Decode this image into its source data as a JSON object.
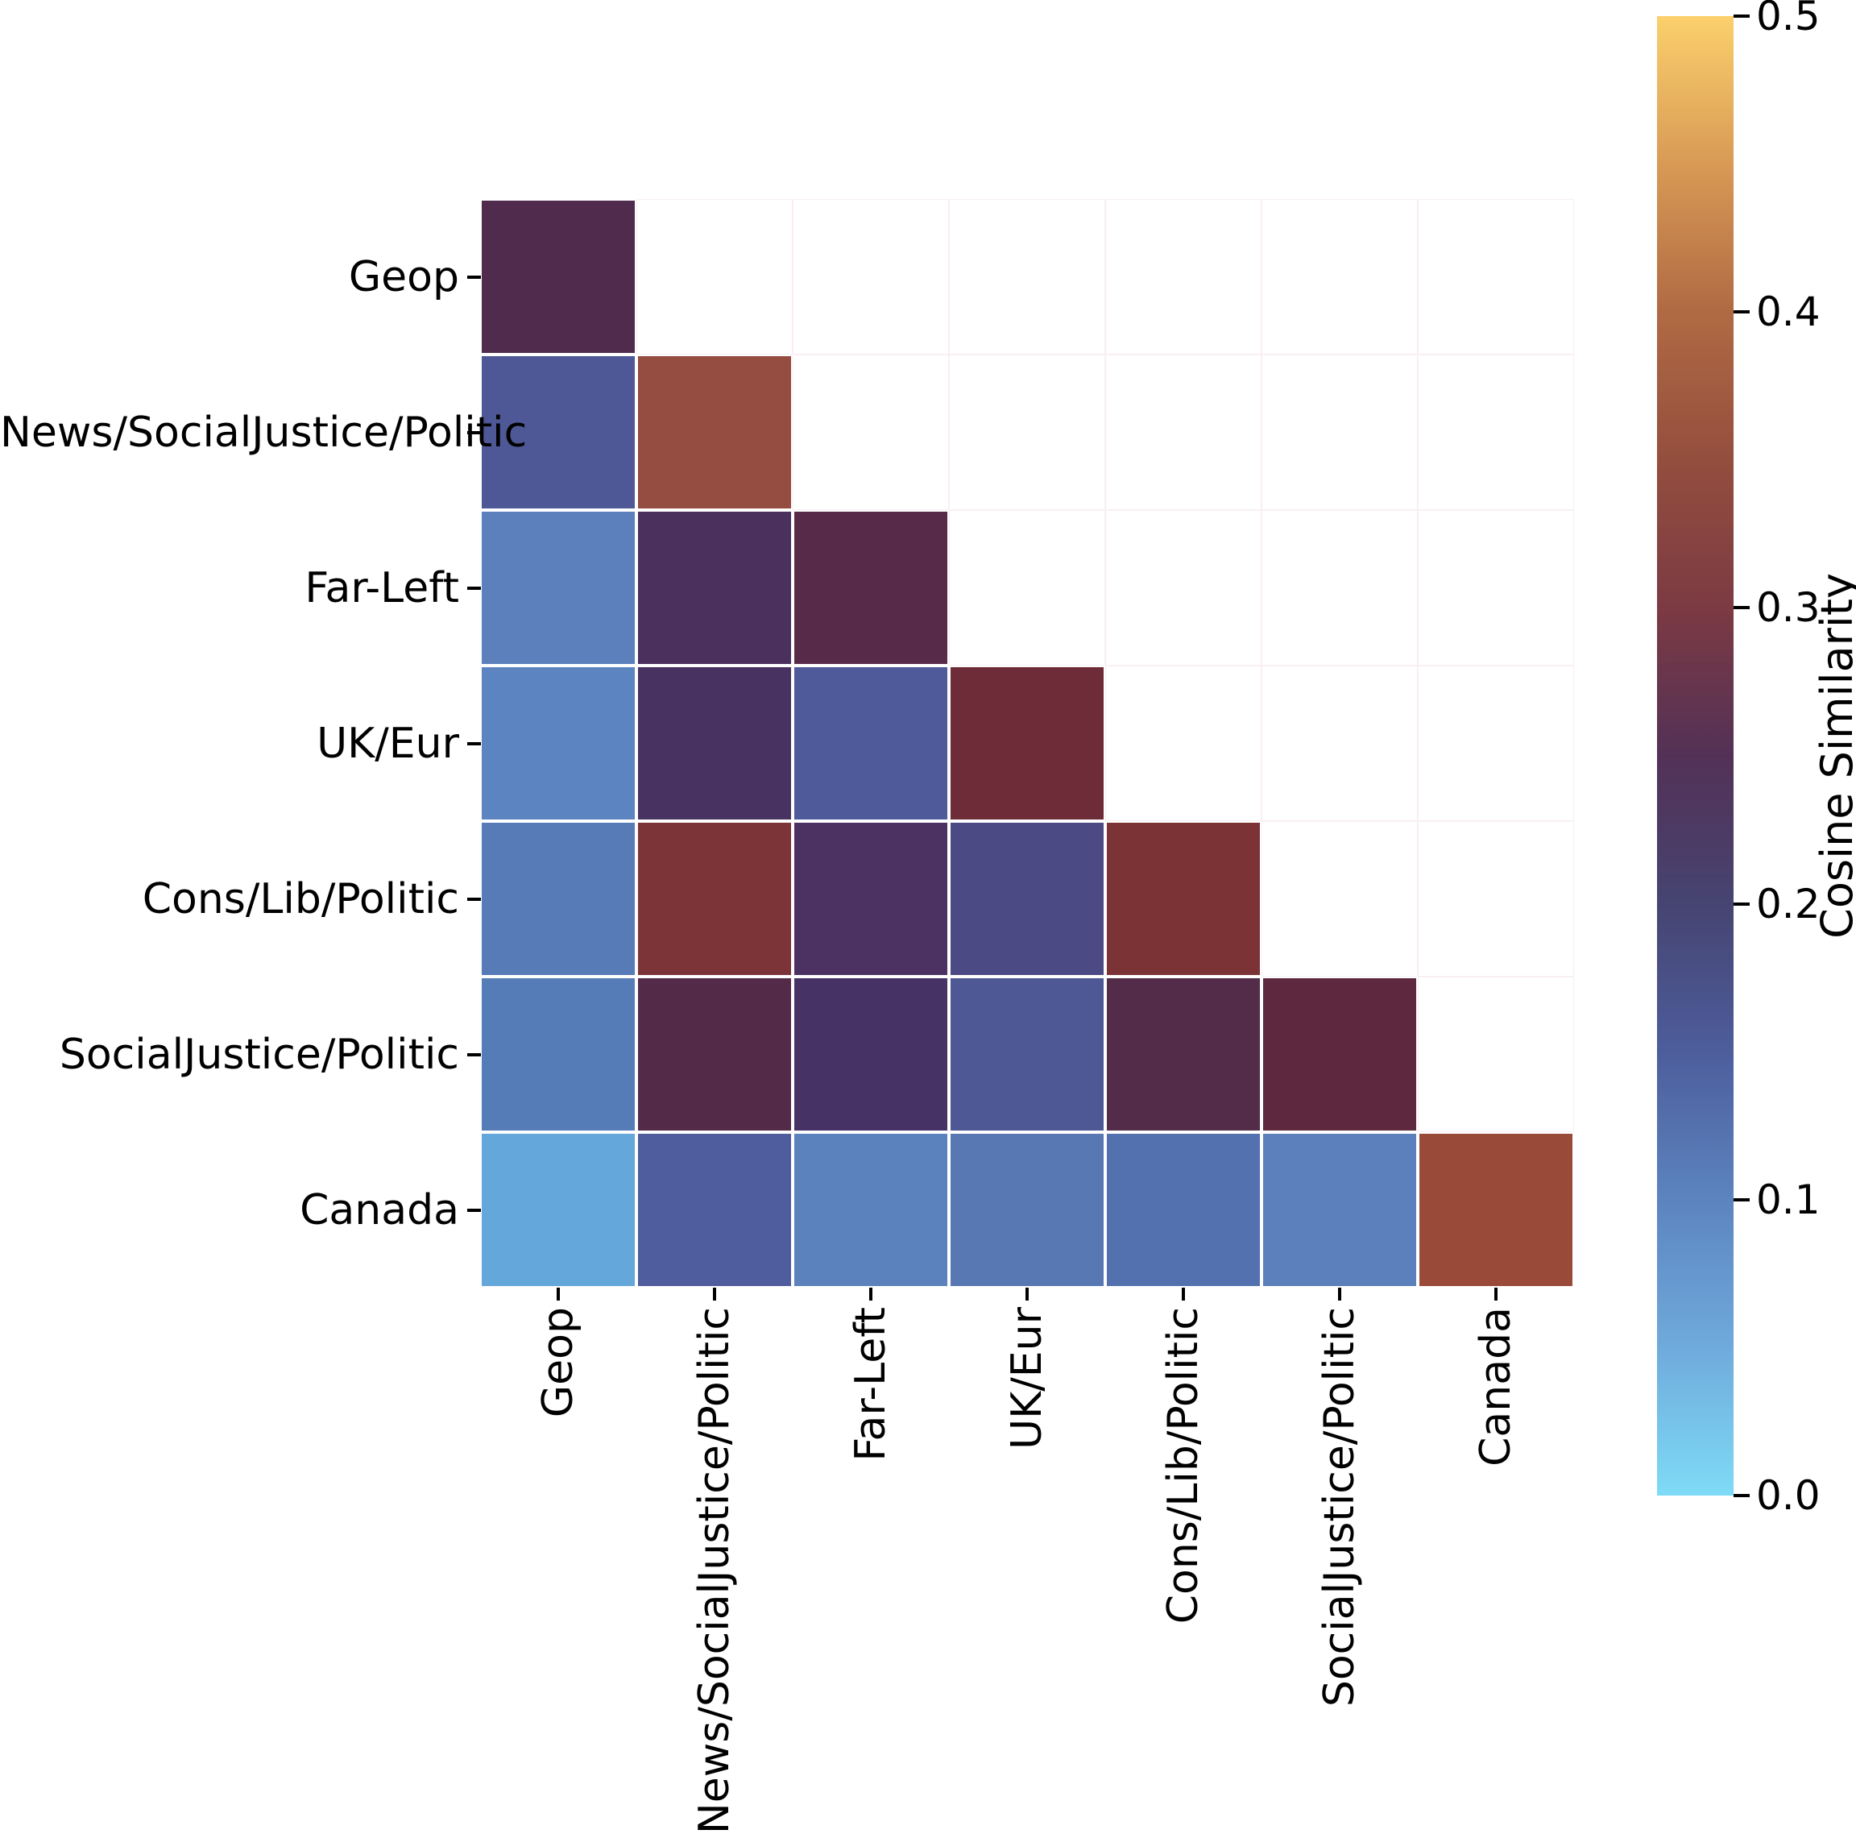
{
  "chart_data": {
    "type": "heatmap",
    "title": "",
    "mask": "upper_triangle",
    "categories": [
      "Geop",
      "News/SocialJustice/Politic",
      "Far-Left",
      "UK/Eur",
      "Cons/Lib/Politic",
      "SocialJustice/Politic",
      "Canada"
    ],
    "x_tick_labels": [
      "Geop",
      "News/SocialJustice/Politic",
      "Far-Left",
      "UK/Eur",
      "Cons/Lib/Politic",
      "SocialJustice/Politic",
      "Canada"
    ],
    "y_tick_labels": [
      "Geop",
      "News/SocialJustice/Politic",
      "Far-Left",
      "UK/Eur",
      "Cons/Lib/Politic",
      "SocialJustice/Politic",
      "Canada"
    ],
    "values": [
      [
        0.24
      ],
      [
        0.17,
        0.33
      ],
      [
        0.1,
        0.22,
        0.25
      ],
      [
        0.1,
        0.21,
        0.16,
        0.29
      ],
      [
        0.11,
        0.3,
        0.22,
        0.18,
        0.3
      ],
      [
        0.11,
        0.25,
        0.21,
        0.17,
        0.25,
        0.27
      ],
      [
        0.07,
        0.15,
        0.1,
        0.11,
        0.12,
        0.1,
        0.34
      ]
    ],
    "cell_colors": [
      [
        "#502B4D"
      ],
      [
        "#4E5897",
        "#954C41"
      ],
      [
        "#5B80BC",
        "#4B2F5C",
        "#572A4A"
      ],
      [
        "#5B84C0",
        "#473261",
        "#4E5A99",
        "#6E2C38"
      ],
      [
        "#567BB7",
        "#7C3439",
        "#4C3263",
        "#4B4A84",
        "#7B3336"
      ],
      [
        "#567CB8",
        "#532A48",
        "#473266",
        "#4D5894",
        "#522C49",
        "#5E283E"
      ],
      [
        "#64A7DA",
        "#4F5C9E",
        "#5B82BC",
        "#5878B4",
        "#5471AF",
        "#5C80BB",
        "#9A4A39"
      ]
    ],
    "grid_color": "#F9EFF2",
    "cell_gap_color": "#FFFFFF",
    "colorbar": {
      "label": "Cosine Similarity",
      "min": 0.0,
      "max": 0.5,
      "ticks": [
        {
          "value": 0.5,
          "label": "0.5"
        },
        {
          "value": 0.4,
          "label": "0.4"
        },
        {
          "value": 0.3,
          "label": "0.3"
        },
        {
          "value": 0.2,
          "label": "0.2"
        },
        {
          "value": 0.1,
          "label": "0.1"
        },
        {
          "value": 0.0,
          "label": "0.0"
        }
      ],
      "gradient": [
        {
          "pos": 0.0,
          "color": "#7EDBF6"
        },
        {
          "pos": 0.1,
          "color": "#6FAADC"
        },
        {
          "pos": 0.2,
          "color": "#5C84BF"
        },
        {
          "pos": 0.3,
          "color": "#4D5D9C"
        },
        {
          "pos": 0.4,
          "color": "#464471"
        },
        {
          "pos": 0.5,
          "color": "#533156"
        },
        {
          "pos": 0.6,
          "color": "#7C3A43"
        },
        {
          "pos": 0.7,
          "color": "#944E3E"
        },
        {
          "pos": 0.8,
          "color": "#B06A43"
        },
        {
          "pos": 0.9,
          "color": "#D89A55"
        },
        {
          "pos": 1.0,
          "color": "#FBD06C"
        }
      ]
    }
  }
}
